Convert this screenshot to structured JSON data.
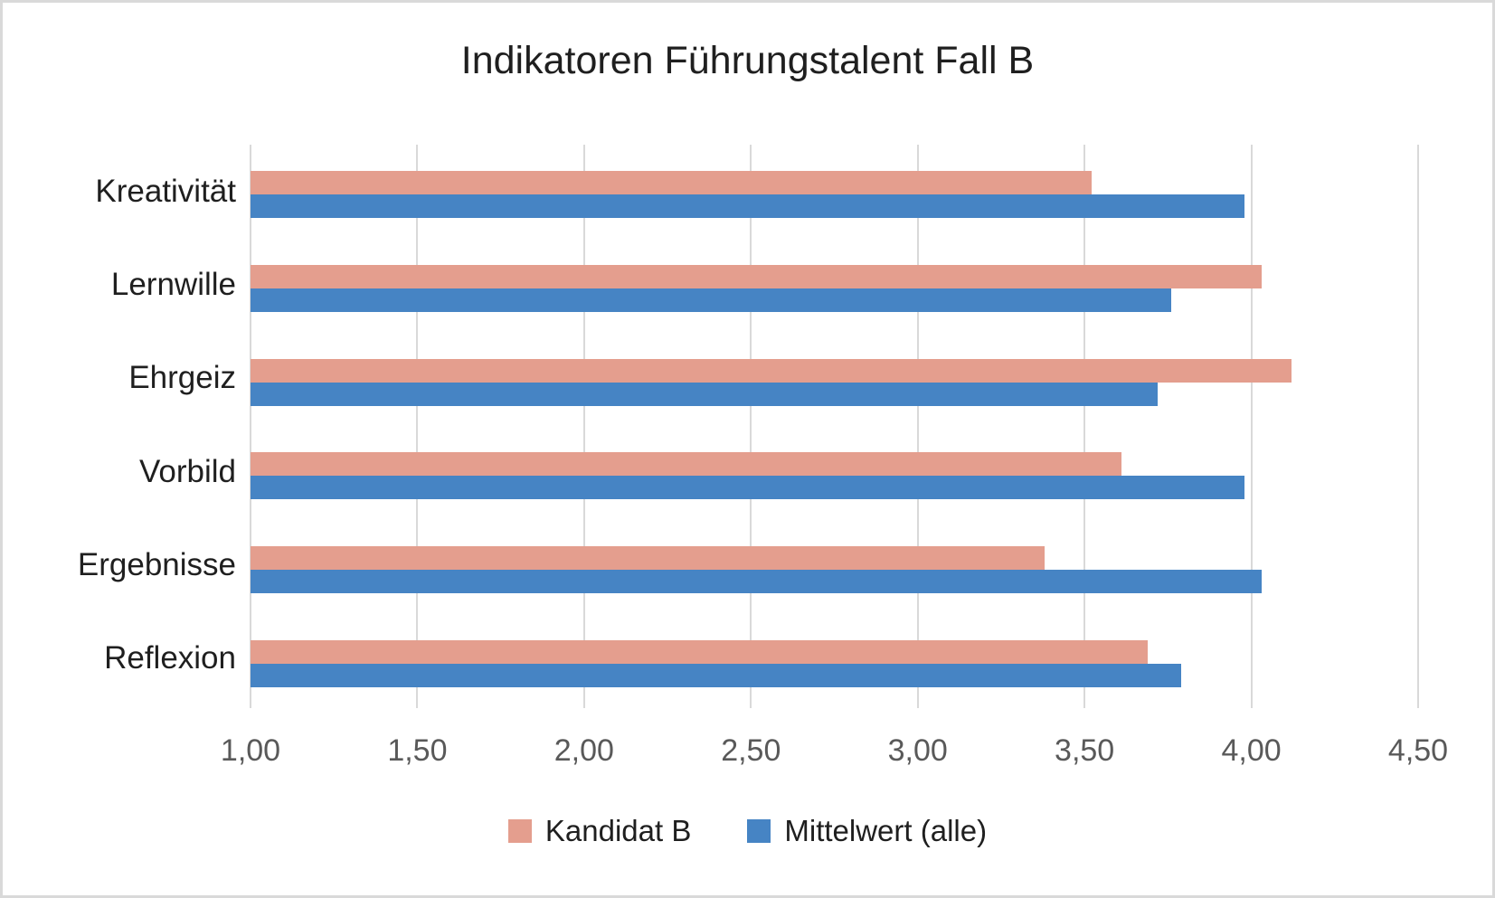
{
  "chart_data": {
    "type": "bar",
    "orientation": "horizontal",
    "title": "Indikatoren Führungstalent Fall B",
    "categories": [
      "Kreativität",
      "Lernwille",
      "Ehrgeiz",
      "Vorbild",
      "Ergebnisse",
      "Reflexion"
    ],
    "series": [
      {
        "name": "Kandidat B",
        "color": "#E49E8E",
        "values": [
          3.52,
          4.03,
          4.12,
          3.61,
          3.38,
          3.69
        ]
      },
      {
        "name": "Mittelwert (alle)",
        "color": "#4684C4",
        "values": [
          3.98,
          3.76,
          3.72,
          3.98,
          4.03,
          3.79
        ]
      }
    ],
    "xlim": [
      1.0,
      4.5
    ],
    "x_tick_labels": [
      "1,00",
      "1,50",
      "2,00",
      "2,50",
      "3,00",
      "3,50",
      "4,00",
      "4,50"
    ],
    "grid": "vertical-major",
    "gridline_color": "#D9D9D9",
    "tick_label_color": "#595959",
    "category_label_color": "#1f1f1f",
    "title_color": "#1f1f1f",
    "legend_position": "bottom",
    "background_color": "#ffffff",
    "border_color": "#D9D9D9"
  }
}
